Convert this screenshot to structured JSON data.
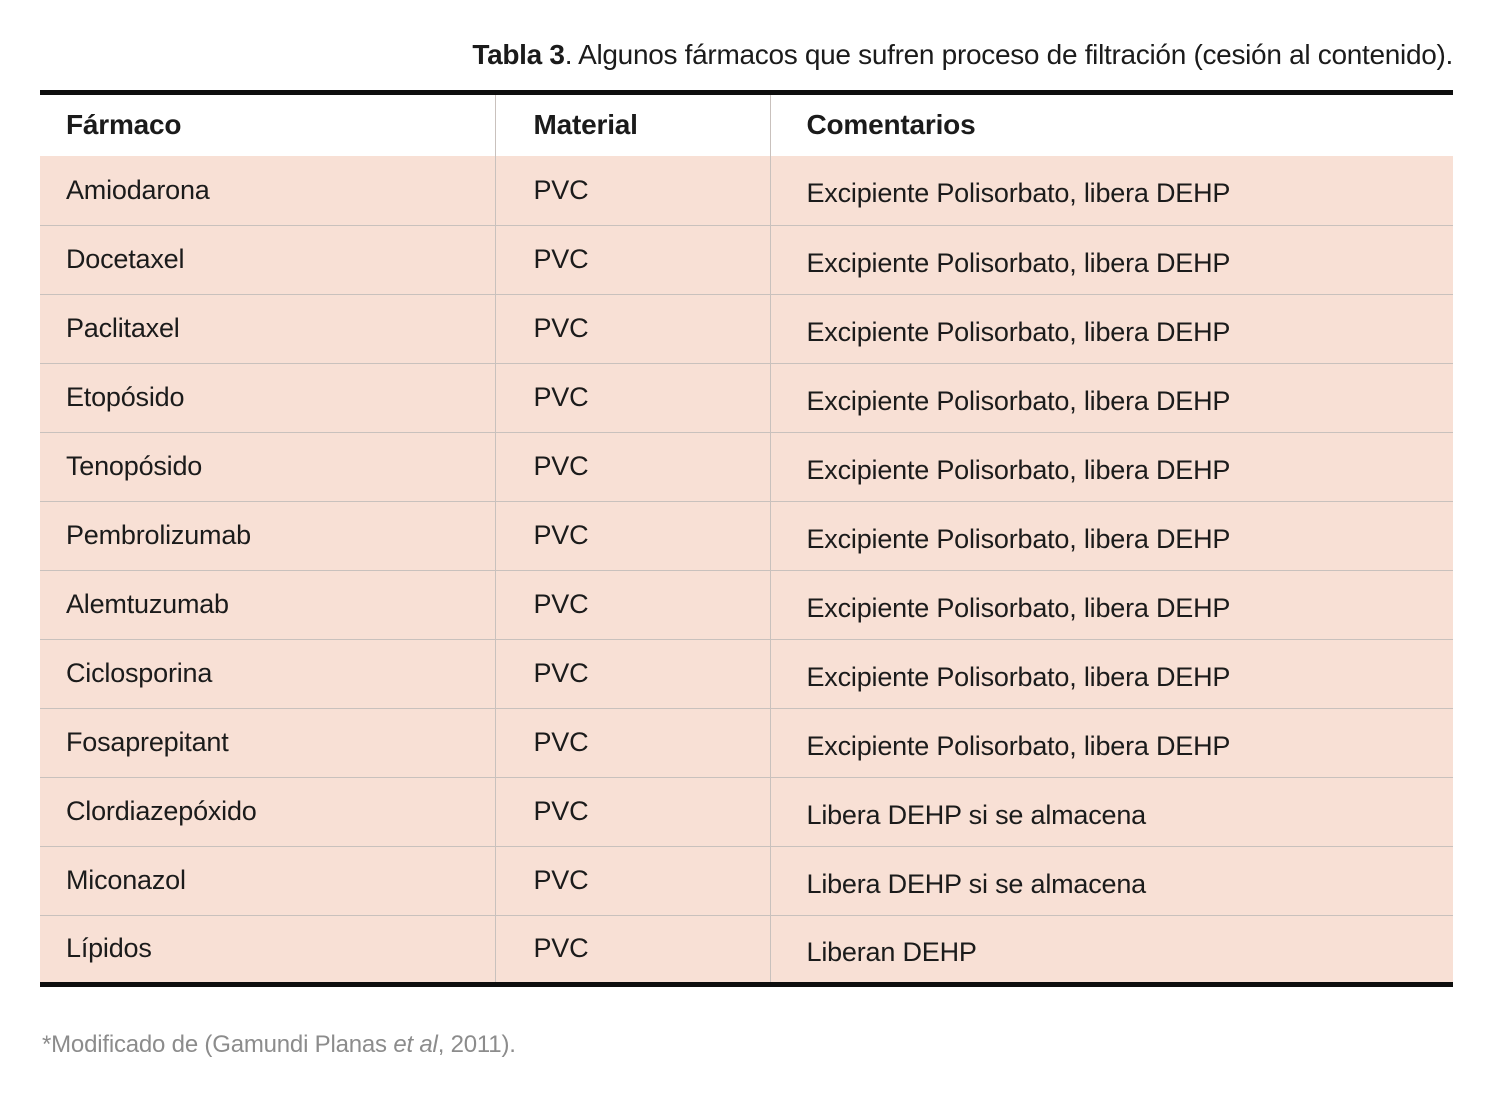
{
  "title": {
    "label": "Tabla 3",
    "rest": ". Algunos fármacos que sufren proceso de filtración (cesión al contenido)."
  },
  "table": {
    "columns": [
      "Fármaco",
      "Material",
      "Comentarios"
    ],
    "rows": [
      {
        "farmaco": "Amiodarona",
        "material": "PVC",
        "comentarios": "Excipiente Polisorbato, libera DEHP"
      },
      {
        "farmaco": "Docetaxel",
        "material": "PVC",
        "comentarios": "Excipiente Polisorbato, libera DEHP"
      },
      {
        "farmaco": "Paclitaxel",
        "material": "PVC",
        "comentarios": "Excipiente Polisorbato, libera DEHP"
      },
      {
        "farmaco": "Etopósido",
        "material": "PVC",
        "comentarios": "Excipiente Polisorbato, libera DEHP"
      },
      {
        "farmaco": "Tenopósido",
        "material": "PVC",
        "comentarios": "Excipiente Polisorbato, libera DEHP"
      },
      {
        "farmaco": "Pembrolizumab",
        "material": "PVC",
        "comentarios": "Excipiente Polisorbato, libera DEHP"
      },
      {
        "farmaco": "Alemtuzumab",
        "material": "PVC",
        "comentarios": "Excipiente Polisorbato, libera DEHP"
      },
      {
        "farmaco": "Ciclosporina",
        "material": "PVC",
        "comentarios": "Excipiente Polisorbato, libera DEHP"
      },
      {
        "farmaco": "Fosaprepitant",
        "material": "PVC",
        "comentarios": "Excipiente Polisorbato, libera DEHP"
      },
      {
        "farmaco": "Clordiazepóxido",
        "material": "PVC",
        "comentarios": "Libera DEHP si se almacena"
      },
      {
        "farmaco": "Miconazol",
        "material": "PVC",
        "comentarios": "Libera DEHP si se almacena"
      },
      {
        "farmaco": "Lípidos",
        "material": "PVC",
        "comentarios": "Liberan DEHP"
      }
    ]
  },
  "footnote": {
    "prefix": "*Modificado de (Gamundi Planas ",
    "italic": "et al",
    "suffix": ", 2011)."
  },
  "colors": {
    "row_background": "#f8e0d5",
    "divider": "#c9c1bd",
    "table_border": "#0e0e0e",
    "text": "#1b1b1b",
    "footnote_text": "#8c8c8c"
  }
}
